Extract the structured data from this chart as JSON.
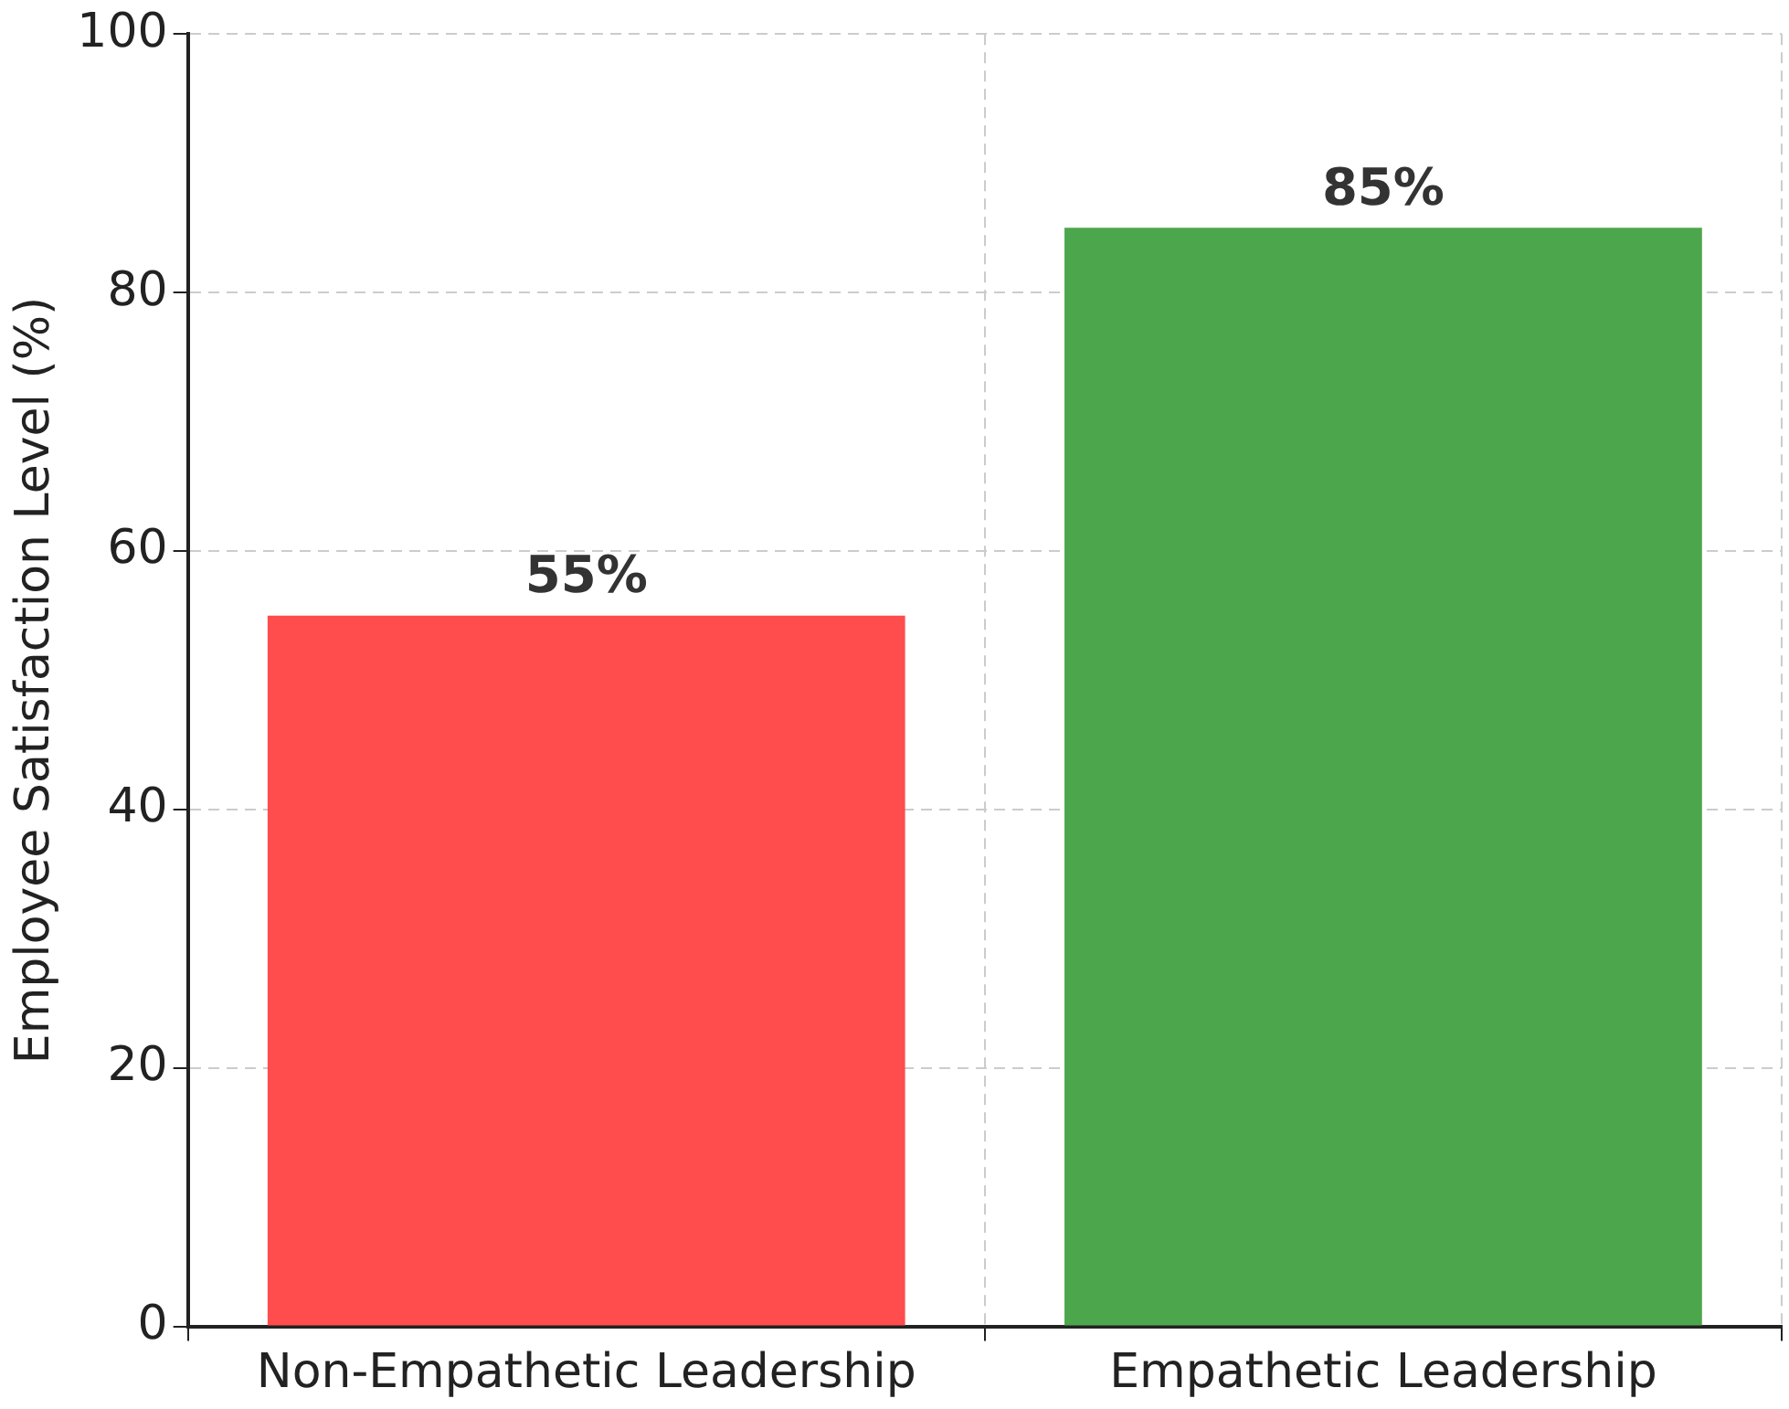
{
  "chart_data": {
    "type": "bar",
    "ylabel": "Employee Satisfaction Level (%)",
    "categories": [
      "Non-Empathetic Leadership",
      "Empathetic Leadership"
    ],
    "values": [
      55,
      85
    ],
    "colors": [
      "#ff4c4c",
      "#4ca64c"
    ],
    "value_labels": [
      "55%",
      "85%"
    ],
    "ylim": [
      0,
      100
    ],
    "yticks": [
      0,
      20,
      40,
      60,
      80,
      100
    ],
    "grid": true,
    "legend": false
  }
}
